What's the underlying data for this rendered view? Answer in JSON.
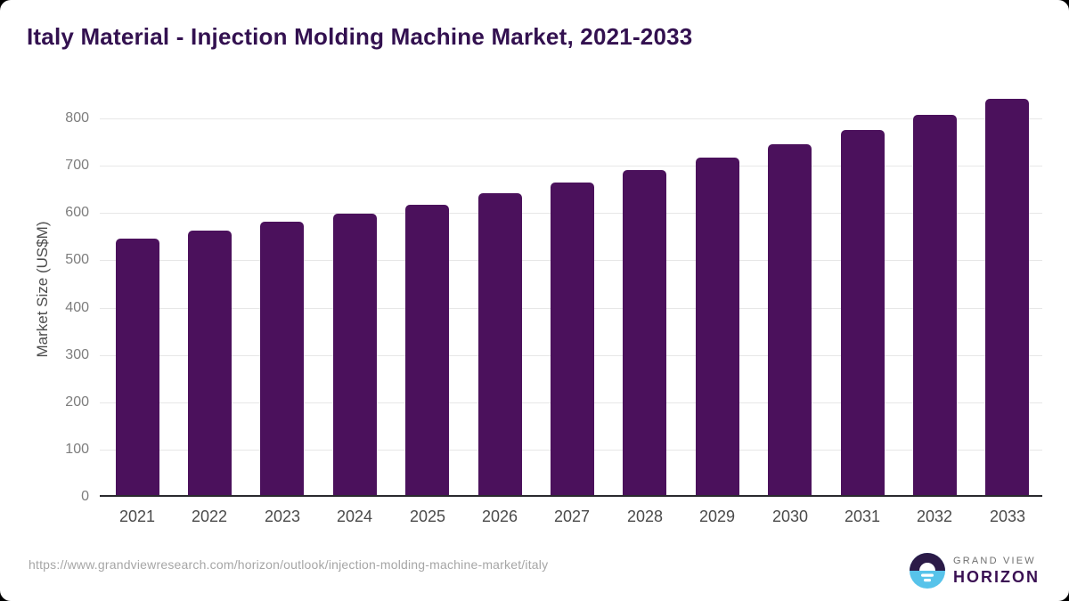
{
  "title": "Italy Material - Injection Molding Machine Market, 2021-2033",
  "source_url": "https://www.grandviewresearch.com/horizon/outlook/injection-molding-machine-market/italy",
  "logo": {
    "top": "GRAND VIEW",
    "bottom": "HORIZON"
  },
  "colors": {
    "bar": "#4b115c",
    "title_text": "#331150",
    "gridline": "#e7e7e7",
    "axis_line": "#2a2a2e",
    "y_tick_text": "#7d7d7d",
    "x_tick_text": "#4a4a4a",
    "url_text": "#a6a6a6",
    "logo_dark": "#2b1a47",
    "logo_blue": "#57c3ea",
    "logo_text_purple": "#3a1053",
    "logo_text_gray": "#6f6f6f"
  },
  "chart_data": {
    "type": "bar",
    "title": "Italy Material - Injection Molding Machine Market, 2021-2033",
    "categories": [
      "2021",
      "2022",
      "2023",
      "2024",
      "2025",
      "2026",
      "2027",
      "2028",
      "2029",
      "2030",
      "2031",
      "2032",
      "2033"
    ],
    "values": [
      545,
      562,
      581,
      599,
      618,
      641,
      665,
      691,
      718,
      746,
      776,
      808,
      842
    ],
    "xlabel": "",
    "ylabel": "Market Size (US$M)",
    "ylim": [
      0,
      875
    ],
    "yticks": [
      0,
      100,
      200,
      300,
      400,
      500,
      600,
      700,
      800
    ],
    "grid": true,
    "legend_position": "none",
    "bar_color": "#4b115c"
  }
}
